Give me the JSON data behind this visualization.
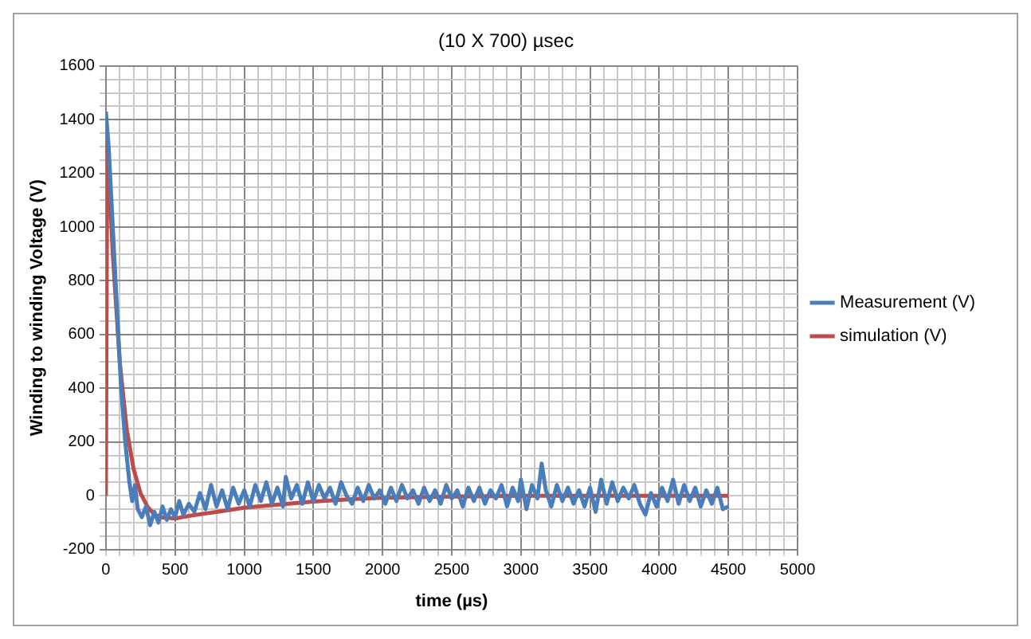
{
  "chart_data": {
    "type": "line",
    "title": "(10 X 700) µsec",
    "xlabel": "time (µs)",
    "ylabel": "Winding to winding Voltage (V)",
    "series": [
      {
        "name": "Measurement (V)",
        "color": "#4a7ebb",
        "x": [
          0,
          20,
          50,
          80,
          110,
          140,
          170,
          190,
          210,
          230,
          260,
          290,
          320,
          350,
          380,
          410,
          440,
          470,
          500,
          530,
          560,
          600,
          640,
          680,
          720,
          760,
          800,
          840,
          880,
          920,
          960,
          1000,
          1040,
          1080,
          1120,
          1160,
          1200,
          1240,
          1280,
          1300,
          1340,
          1380,
          1420,
          1460,
          1500,
          1540,
          1580,
          1620,
          1660,
          1700,
          1740,
          1780,
          1820,
          1860,
          1900,
          1940,
          1980,
          2020,
          2060,
          2100,
          2140,
          2180,
          2220,
          2260,
          2300,
          2340,
          2380,
          2420,
          2460,
          2500,
          2540,
          2580,
          2620,
          2660,
          2700,
          2740,
          2780,
          2820,
          2860,
          2900,
          2940,
          2980,
          3000,
          3040,
          3080,
          3120,
          3150,
          3180,
          3220,
          3260,
          3300,
          3340,
          3380,
          3420,
          3460,
          3500,
          3540,
          3580,
          3620,
          3660,
          3700,
          3740,
          3780,
          3820,
          3860,
          3900,
          3940,
          3980,
          4020,
          4060,
          4100,
          4140,
          4180,
          4220,
          4260,
          4300,
          4340,
          4380,
          4420,
          4460,
          4500
        ],
        "values": [
          1430,
          1300,
          1000,
          700,
          400,
          200,
          50,
          -20,
          40,
          -50,
          -80,
          -40,
          -110,
          -60,
          -100,
          -40,
          -90,
          -50,
          -80,
          -20,
          -70,
          -30,
          -60,
          10,
          -50,
          40,
          -40,
          20,
          -50,
          30,
          -30,
          20,
          -40,
          40,
          -20,
          50,
          -30,
          30,
          -40,
          70,
          -10,
          40,
          -30,
          50,
          -20,
          40,
          -10,
          30,
          -30,
          50,
          0,
          -30,
          30,
          -20,
          40,
          -10,
          20,
          -30,
          30,
          -20,
          40,
          -10,
          20,
          -30,
          30,
          -20,
          20,
          -30,
          40,
          -10,
          20,
          -40,
          30,
          -20,
          30,
          -30,
          20,
          -10,
          40,
          -40,
          30,
          -20,
          60,
          -50,
          40,
          -10,
          120,
          20,
          -40,
          40,
          -20,
          30,
          -30,
          20,
          -40,
          30,
          -60,
          60,
          -30,
          50,
          -20,
          30,
          -10,
          40,
          -30,
          -70,
          10,
          -40,
          30,
          -20,
          60,
          -30,
          40,
          -20,
          30,
          -40,
          20,
          -30,
          30,
          -50,
          -40
        ]
      },
      {
        "name": "simulation (V)",
        "color": "#be4b48",
        "x": [
          0,
          10,
          50,
          100,
          150,
          200,
          250,
          300,
          350,
          400,
          500,
          600,
          800,
          1000,
          1200,
          1500,
          1800,
          2000,
          2500,
          3000,
          3500,
          4000,
          4500
        ],
        "values": [
          0,
          1320,
          900,
          500,
          250,
          100,
          10,
          -40,
          -70,
          -80,
          -85,
          -75,
          -60,
          -45,
          -35,
          -22,
          -12,
          -8,
          -3,
          0,
          0,
          0,
          0
        ]
      }
    ],
    "xlim": [
      0,
      5000
    ],
    "ylim": [
      -200,
      1600
    ],
    "xticks": [
      0,
      {
        "value": 100,
        "label": null
      },
      {
        "value": 200,
        "label": null
      },
      {
        "value": 300,
        "label": null
      },
      {
        "value": 400,
        "label": null
      },
      500,
      {
        "value": 600,
        "label": null
      },
      {
        "value": 700,
        "label": null
      },
      {
        "value": 800,
        "label": null
      },
      {
        "value": 900,
        "label": null
      },
      1000,
      {
        "value": 1100,
        "label": null
      },
      {
        "value": 1200,
        "label": null
      },
      {
        "value": 1300,
        "label": null
      },
      {
        "value": 1400,
        "label": null
      },
      1500,
      {
        "value": 1600,
        "label": null
      },
      {
        "value": 1700,
        "label": null
      },
      {
        "value": 1800,
        "label": null
      },
      {
        "value": 1900,
        "label": null
      },
      2000,
      {
        "value": 2100,
        "label": null
      },
      {
        "value": 2200,
        "label": null
      },
      {
        "value": 2300,
        "label": null
      },
      {
        "value": 2400,
        "label": null
      },
      2500,
      {
        "value": 2600,
        "label": null
      },
      {
        "value": 2700,
        "label": null
      },
      {
        "value": 2800,
        "label": null
      },
      {
        "value": 2900,
        "label": null
      },
      3000,
      {
        "value": 3100,
        "label": null
      },
      {
        "value": 3200,
        "label": null
      },
      {
        "value": 3300,
        "label": null
      },
      {
        "value": 3400,
        "label": null
      },
      3500,
      {
        "value": 3600,
        "label": null
      },
      {
        "value": 3700,
        "label": null
      },
      {
        "value": 3800,
        "label": null
      },
      {
        "value": 3900,
        "label": null
      },
      4000,
      {
        "value": 4100,
        "label": null
      },
      {
        "value": 4200,
        "label": null
      },
      {
        "value": 4300,
        "label": null
      },
      {
        "value": 4400,
        "label": null
      },
      4500,
      {
        "value": 4600,
        "label": null
      },
      {
        "value": 4700,
        "label": null
      },
      {
        "value": 4800,
        "label": null
      },
      {
        "value": 4900,
        "label": null
      },
      5000
    ],
    "yticks": [
      -200,
      {
        "value": -150,
        "label": null
      },
      {
        "value": -100,
        "label": null
      },
      {
        "value": -50,
        "label": null
      },
      0,
      {
        "value": 50,
        "label": null
      },
      {
        "value": 100,
        "label": null
      },
      {
        "value": 150,
        "label": null
      },
      200,
      {
        "value": 250,
        "label": null
      },
      {
        "value": 300,
        "label": null
      },
      {
        "value": 350,
        "label": null
      },
      400,
      {
        "value": 450,
        "label": null
      },
      {
        "value": 500,
        "label": null
      },
      {
        "value": 550,
        "label": null
      },
      600,
      {
        "value": 650,
        "label": null
      },
      {
        "value": 700,
        "label": null
      },
      {
        "value": 750,
        "label": null
      },
      800,
      {
        "value": 850,
        "label": null
      },
      {
        "value": 900,
        "label": null
      },
      {
        "value": 950,
        "label": null
      },
      1000,
      {
        "value": 1050,
        "label": null
      },
      {
        "value": 1100,
        "label": null
      },
      {
        "value": 1150,
        "label": null
      },
      1200,
      {
        "value": 1250,
        "label": null
      },
      {
        "value": 1300,
        "label": null
      },
      {
        "value": 1350,
        "label": null
      },
      1400,
      {
        "value": 1450,
        "label": null
      },
      {
        "value": 1500,
        "label": null
      },
      {
        "value": 1550,
        "label": null
      },
      1600
    ],
    "grid": true,
    "legend": "right",
    "marker": "none",
    "line_style": "solid"
  }
}
